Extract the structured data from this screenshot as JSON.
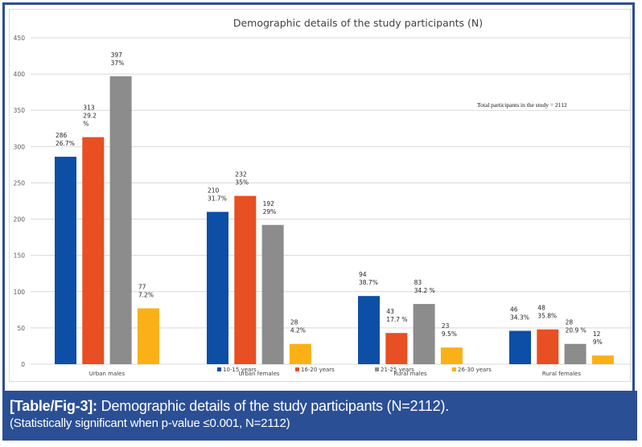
{
  "chart_data": {
    "type": "bar",
    "title": "Demographic details of the study participants (N)",
    "xlabel": "",
    "ylabel": "",
    "ylim": [
      0,
      450
    ],
    "yticks": [
      0,
      50,
      100,
      150,
      200,
      250,
      300,
      350,
      400,
      450
    ],
    "grid": true,
    "legend_position": "bottom",
    "categories": [
      "Urban males",
      "Urban females",
      "Rural males",
      "Rural females"
    ],
    "series": [
      {
        "name": "10-15 years",
        "color": "#0d4ea6",
        "values": [
          286,
          210,
          94,
          46
        ],
        "labels": [
          [
            "286",
            "26.7%"
          ],
          [
            "210",
            "31.7%"
          ],
          [
            "94",
            "38.7%"
          ],
          [
            "46",
            "34.3%"
          ]
        ]
      },
      {
        "name": "16-20 years",
        "color": "#e84f22",
        "values": [
          313,
          232,
          43,
          48
        ],
        "labels": [
          [
            "313",
            "29.2",
            "%"
          ],
          [
            "232",
            "35%"
          ],
          [
            "43",
            "17.7 %"
          ],
          [
            "48",
            "35.8%"
          ]
        ]
      },
      {
        "name": "21-25 years",
        "color": "#8c8c8c",
        "values": [
          397,
          192,
          83,
          28
        ],
        "labels": [
          [
            "397",
            "37%"
          ],
          [
            "192",
            "29%"
          ],
          [
            "83",
            "34.2 %"
          ],
          [
            "28",
            "20.9 %"
          ]
        ]
      },
      {
        "name": "26-30 years",
        "color": "#fbb017",
        "values": [
          77,
          28,
          23,
          12
        ],
        "labels": [
          [
            "77",
            "7.2%"
          ],
          [
            "28",
            "4.2%"
          ],
          [
            "23",
            "9.5%"
          ],
          [
            "12",
            "9%"
          ]
        ]
      }
    ],
    "annotations": [
      "Total participants in the study = 2112"
    ]
  },
  "caption": {
    "label": "[Table/Fig-3]:",
    "text": " Demographic details of the study participants (N=2112).",
    "note": "(Statistically significant when p-value ≤0.001, N=2112)"
  }
}
